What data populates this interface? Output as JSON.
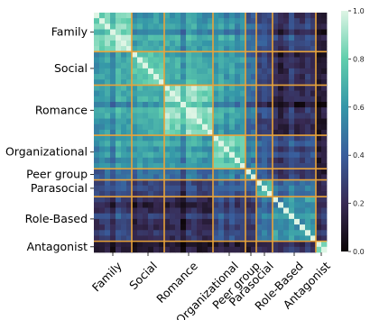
{
  "chart_data": {
    "type": "heatmap",
    "title": "",
    "xlabel": "",
    "ylabel": "",
    "categories": [
      {
        "name": "Family",
        "size": 7
      },
      {
        "name": "Social",
        "size": 6
      },
      {
        "name": "Romance",
        "size": 9
      },
      {
        "name": "Organizational",
        "size": 6
      },
      {
        "name": "Peer group",
        "size": 2
      },
      {
        "name": "Parasocial",
        "size": 3
      },
      {
        "name": "Role-Based",
        "size": 8
      },
      {
        "name": "Antagonist",
        "size": 2
      }
    ],
    "row_labels": [
      "Family",
      "Social",
      "Romance",
      "Organizational",
      "Peer group",
      "Parasocial",
      "Role-Based",
      "Antagonist"
    ],
    "col_labels": [
      "Family",
      "Social",
      "Romance",
      "Organizational",
      "Peer group",
      "Parasocial",
      "Role-Based",
      "Antagonist"
    ],
    "block_mean_similarity": [
      [
        0.82,
        0.62,
        0.58,
        0.55,
        0.48,
        0.34,
        0.28,
        0.12
      ],
      [
        0.62,
        0.78,
        0.66,
        0.6,
        0.52,
        0.3,
        0.22,
        0.1
      ],
      [
        0.58,
        0.66,
        0.8,
        0.58,
        0.5,
        0.26,
        0.18,
        0.08
      ],
      [
        0.55,
        0.6,
        0.58,
        0.76,
        0.56,
        0.38,
        0.32,
        0.14
      ],
      [
        0.48,
        0.52,
        0.5,
        0.56,
        0.7,
        0.44,
        0.36,
        0.18
      ],
      [
        0.34,
        0.3,
        0.26,
        0.38,
        0.44,
        0.68,
        0.48,
        0.22
      ],
      [
        0.28,
        0.22,
        0.18,
        0.32,
        0.36,
        0.48,
        0.64,
        0.26
      ],
      [
        0.12,
        0.1,
        0.08,
        0.14,
        0.18,
        0.22,
        0.26,
        0.9
      ]
    ],
    "diagonal_value": 1.0,
    "colorbar": {
      "range": [
        0.0,
        1.0
      ],
      "ticks": [
        "0.0",
        "0.2",
        "0.4",
        "0.6",
        "0.8",
        "1.0"
      ],
      "colormap": "mako",
      "color_stops": [
        "#0b0405",
        "#382a54",
        "#395d9c",
        "#3496a8",
        "#60ceac",
        "#def5e5"
      ]
    },
    "separator_color": "#e8a33a",
    "legend": "none",
    "grid": false
  }
}
